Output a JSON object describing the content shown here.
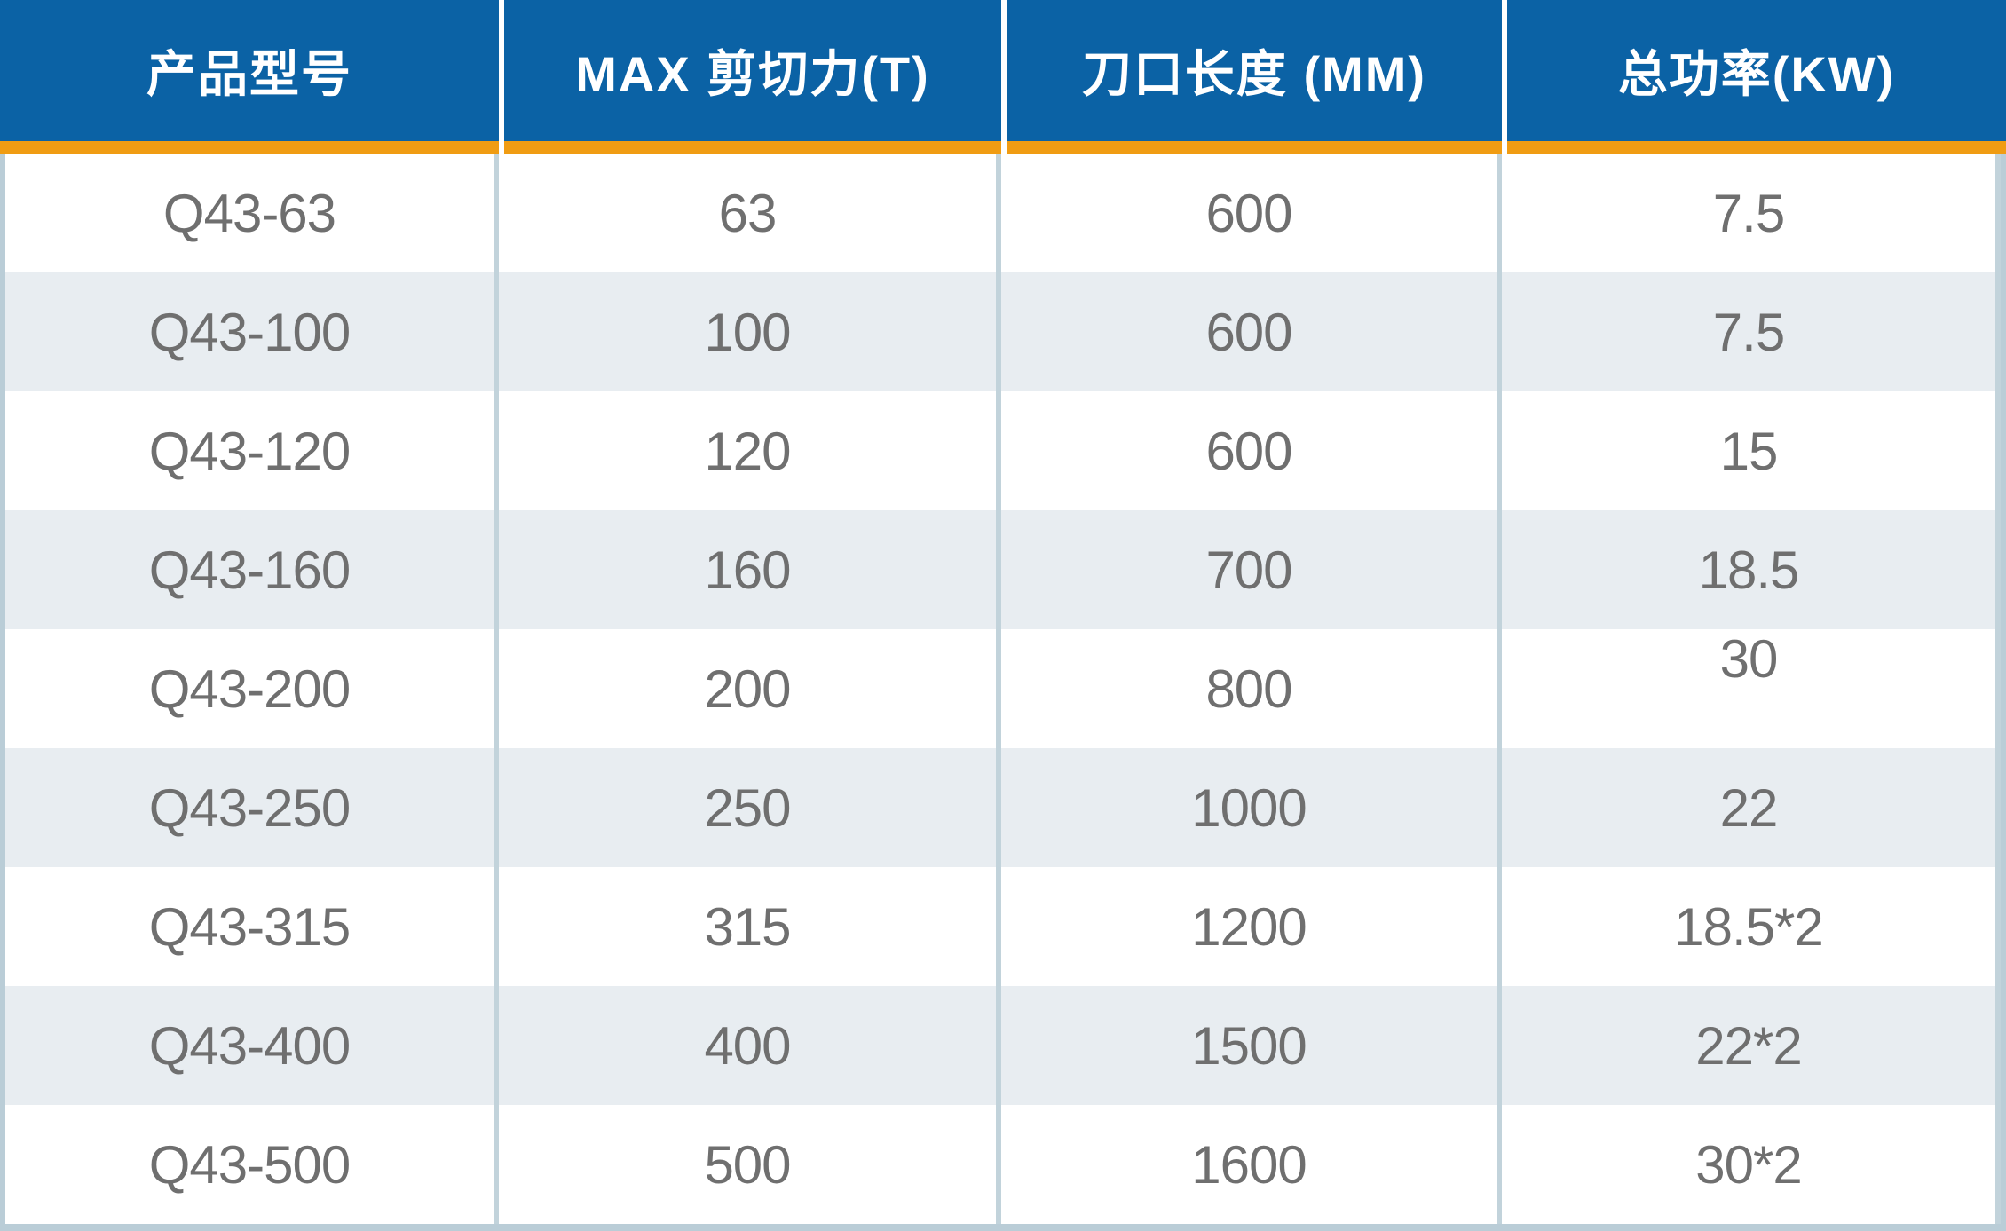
{
  "table": {
    "headers": [
      {
        "label": "产品型号"
      },
      {
        "label": "MAX 剪切力(T)"
      },
      {
        "label": "刀口长度 (MM)"
      },
      {
        "label": "总功率(KW)"
      }
    ],
    "rows": [
      {
        "model": "Q43-63",
        "max_shear_t": "63",
        "blade_length_mm": "600",
        "total_power_kw": "7.5",
        "power_top_aligned": false
      },
      {
        "model": "Q43-100",
        "max_shear_t": "100",
        "blade_length_mm": "600",
        "total_power_kw": "7.5",
        "power_top_aligned": false
      },
      {
        "model": "Q43-120",
        "max_shear_t": "120",
        "blade_length_mm": "600",
        "total_power_kw": "15",
        "power_top_aligned": false
      },
      {
        "model": "Q43-160",
        "max_shear_t": "160",
        "blade_length_mm": "700",
        "total_power_kw": "18.5",
        "power_top_aligned": false
      },
      {
        "model": "Q43-200",
        "max_shear_t": "200",
        "blade_length_mm": "800",
        "total_power_kw": "30",
        "power_top_aligned": true
      },
      {
        "model": "Q43-250",
        "max_shear_t": "250",
        "blade_length_mm": "1000",
        "total_power_kw": "22",
        "power_top_aligned": false
      },
      {
        "model": "Q43-315",
        "max_shear_t": "315",
        "blade_length_mm": "1200",
        "total_power_kw": "18.5*2",
        "power_top_aligned": false
      },
      {
        "model": "Q43-400",
        "max_shear_t": "400",
        "blade_length_mm": "1500",
        "total_power_kw": "22*2",
        "power_top_aligned": false
      },
      {
        "model": "Q43-500",
        "max_shear_t": "500",
        "blade_length_mm": "1600",
        "total_power_kw": "30*2",
        "power_top_aligned": false
      }
    ],
    "colors": {
      "header_bg": "#0b62a5",
      "accent_underline": "#f09c13",
      "row_shade": "#e8edf1",
      "divider": "#c2d3db",
      "outer_border": "#bacdd7",
      "body_text": "#6f6f6f"
    }
  }
}
